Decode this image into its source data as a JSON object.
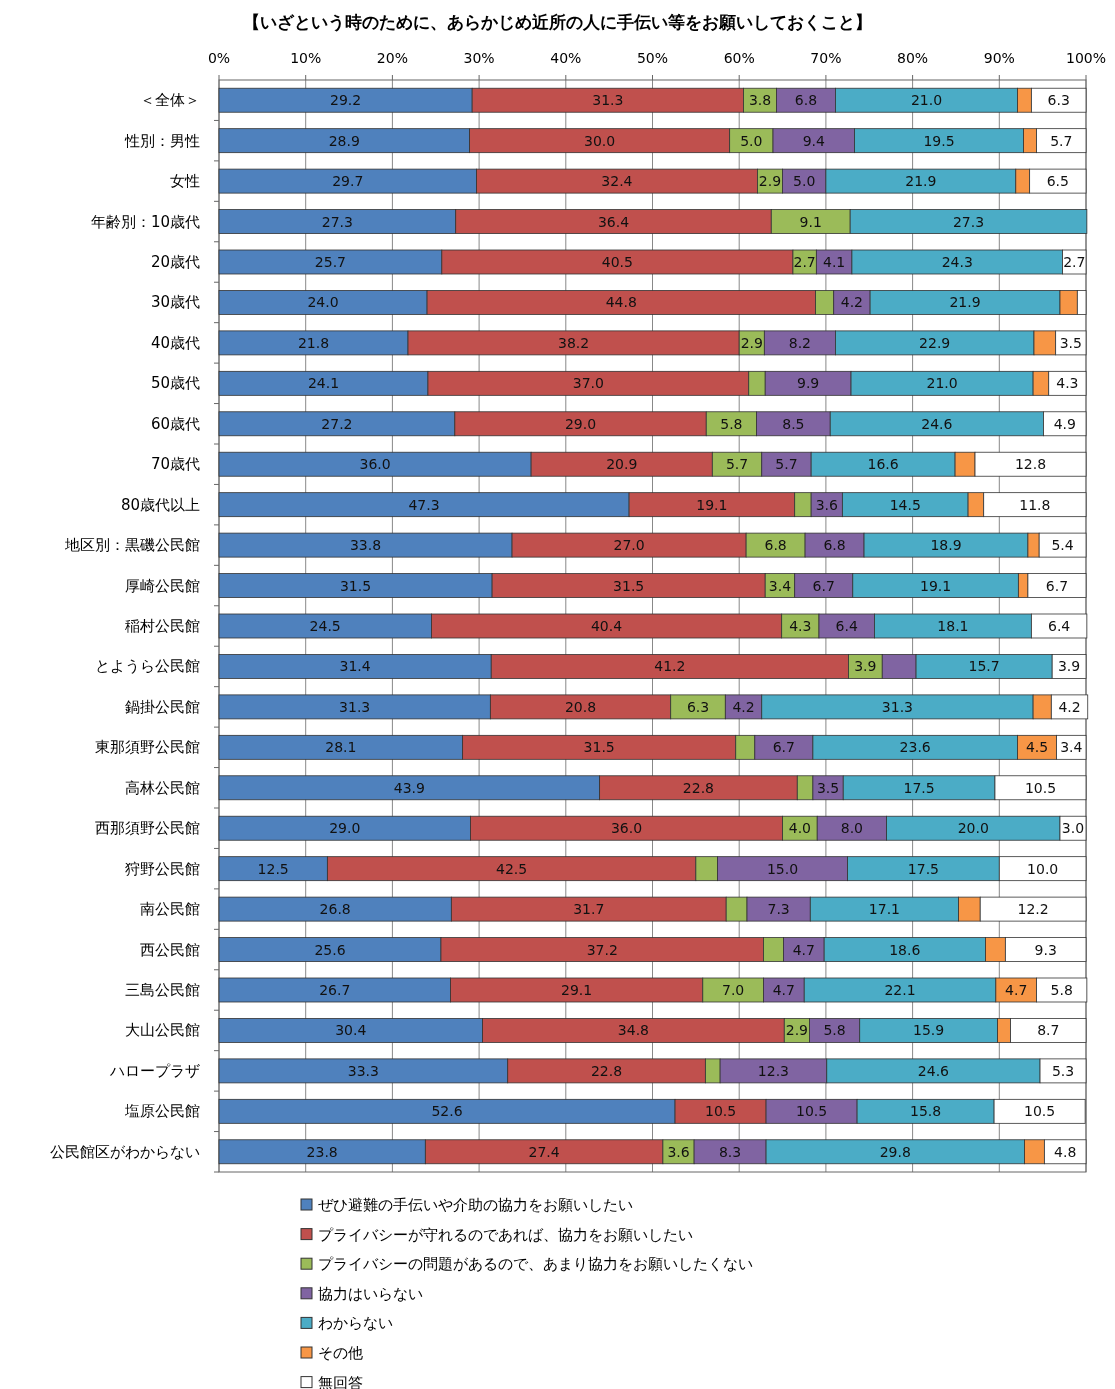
{
  "chart_data": {
    "type": "bar",
    "orientation": "horizontal",
    "stacked": true,
    "title": "【いざという時のために、あらかじめ近所の人に手伝い等をお願いしておくこと】",
    "categories": [
      "＜全体＞",
      "性別：男性",
      "女性",
      "年齢別：10歳代",
      "20歳代",
      "30歳代",
      "40歳代",
      "50歳代",
      "60歳代",
      "70歳代",
      "80歳代以上",
      "地区別：黒磯公民館",
      "厚崎公民館",
      "稲村公民館",
      "とようら公民館",
      "鍋掛公民館",
      "東那須野公民館",
      "高林公民館",
      "西那須野公民館",
      "狩野公民館",
      "南公民館",
      "西公民館",
      "三島公民館",
      "大山公民館",
      "ハロープラザ",
      "塩原公民館",
      "公民館区がわからない"
    ],
    "series": [
      {
        "name": "ぜひ避難の手伝いや介助の協力をお願いしたい",
        "color": "#4f81bd",
        "values": [
          29.2,
          28.9,
          29.7,
          27.3,
          25.7,
          24.0,
          21.8,
          24.1,
          27.2,
          36.0,
          47.3,
          33.8,
          31.5,
          24.5,
          31.4,
          31.3,
          28.1,
          43.9,
          29.0,
          12.5,
          26.8,
          25.6,
          26.7,
          30.4,
          33.3,
          52.6,
          23.8
        ],
        "value_labels": [
          "29.2",
          "28.9",
          "29.7",
          "27.3",
          "25.7",
          "24.0",
          "21.8",
          "24.1",
          "27.2",
          "36.0",
          "47.3",
          "33.8",
          "31.5",
          "24.5",
          "31.4",
          "31.3",
          "28.1",
          "43.9",
          "29.0",
          "12.5",
          "26.8",
          "25.6",
          "26.7",
          "30.4",
          "33.3",
          "52.6",
          "23.8"
        ]
      },
      {
        "name": "プライバシーが守れるのであれば、協力をお願いしたい",
        "color": "#c0504d",
        "values": [
          31.3,
          30.0,
          32.4,
          36.4,
          40.5,
          44.8,
          38.2,
          37.0,
          29.0,
          20.9,
          19.1,
          27.0,
          31.5,
          40.4,
          41.2,
          20.8,
          31.5,
          22.8,
          36.0,
          42.5,
          31.7,
          37.2,
          29.1,
          34.8,
          22.8,
          10.5,
          27.4
        ],
        "value_labels": [
          "31.3",
          "30.0",
          "32.4",
          "36.4",
          "40.5",
          "44.8",
          "38.2",
          "37.0",
          "29.0",
          "20.9",
          "19.1",
          "27.0",
          "31.5",
          "40.4",
          "41.2",
          "20.8",
          "31.5",
          "22.8",
          "36.0",
          "42.5",
          "31.7",
          "37.2",
          "29.1",
          "34.8",
          "22.8",
          "10.5",
          "27.4"
        ]
      },
      {
        "name": "プライバシーの問題があるので、あまり協力をお願いしたくない",
        "color": "#9bbb59",
        "values": [
          3.8,
          5.0,
          2.9,
          9.1,
          2.7,
          2.1,
          2.9,
          1.9,
          5.8,
          5.7,
          1.9,
          6.8,
          3.4,
          4.3,
          3.9,
          6.3,
          2.2,
          1.8,
          4.0,
          2.5,
          2.4,
          2.3,
          7.0,
          2.9,
          1.7,
          null,
          3.6
        ],
        "value_labels": [
          "3.8",
          "5.0",
          "2.9",
          "9.1",
          "2.7",
          null,
          "2.9",
          null,
          "5.8",
          "5.7",
          null,
          "6.8",
          "3.4",
          "4.3",
          "3.9",
          "6.3",
          null,
          null,
          "4.0",
          null,
          null,
          null,
          "7.0",
          "2.9",
          null,
          null,
          "3.6"
        ]
      },
      {
        "name": "協力はいらない",
        "color": "#8064a2",
        "values": [
          6.8,
          9.4,
          5.0,
          null,
          4.1,
          4.2,
          8.2,
          9.9,
          8.5,
          5.7,
          3.6,
          6.8,
          6.7,
          6.4,
          3.9,
          4.2,
          6.7,
          3.5,
          8.0,
          15.0,
          7.3,
          4.7,
          4.7,
          5.8,
          12.3,
          10.5,
          8.3
        ],
        "value_labels": [
          "6.8",
          "9.4",
          "5.0",
          null,
          "4.1",
          "4.2",
          "8.2",
          "9.9",
          "8.5",
          "5.7",
          "3.6",
          "6.8",
          "6.7",
          "6.4",
          null,
          "4.2",
          "6.7",
          "3.5",
          "8.0",
          "15.0",
          "7.3",
          "4.7",
          "4.7",
          "5.8",
          "12.3",
          "10.5",
          "8.3"
        ]
      },
      {
        "name": "わからない",
        "color": "#4bacc6",
        "values": [
          21.0,
          19.5,
          21.9,
          27.3,
          24.3,
          21.9,
          22.9,
          21.0,
          24.6,
          16.6,
          14.5,
          18.9,
          19.1,
          18.1,
          15.7,
          31.3,
          23.6,
          17.5,
          20.0,
          17.5,
          17.1,
          18.6,
          22.1,
          15.9,
          24.6,
          15.8,
          29.8
        ],
        "value_labels": [
          "21.0",
          "19.5",
          "21.9",
          "27.3",
          "24.3",
          "21.9",
          "22.9",
          "21.0",
          "24.6",
          "16.6",
          "14.5",
          "18.9",
          "19.1",
          "18.1",
          "15.7",
          "31.3",
          "23.6",
          "17.5",
          "20.0",
          "17.5",
          "17.1",
          "18.6",
          "22.1",
          "15.9",
          "24.6",
          "15.8",
          "29.8"
        ]
      },
      {
        "name": "その他",
        "color": "#f79646",
        "values": [
          1.6,
          1.5,
          1.6,
          null,
          null,
          2.0,
          2.5,
          1.8,
          null,
          2.3,
          1.8,
          1.3,
          1.1,
          null,
          null,
          2.1,
          4.5,
          null,
          null,
          null,
          2.5,
          2.3,
          4.7,
          1.5,
          null,
          null,
          2.3
        ],
        "value_labels": [
          null,
          null,
          null,
          null,
          null,
          null,
          null,
          null,
          null,
          null,
          null,
          null,
          null,
          null,
          null,
          null,
          "4.5",
          null,
          null,
          null,
          null,
          null,
          "4.7",
          null,
          null,
          null,
          null
        ]
      },
      {
        "name": "無回答",
        "color": "#ffffff",
        "values": [
          6.3,
          5.7,
          6.5,
          null,
          2.7,
          1.0,
          3.5,
          4.3,
          4.9,
          12.8,
          11.8,
          5.4,
          6.7,
          6.4,
          3.9,
          4.2,
          3.4,
          10.5,
          3.0,
          10.0,
          12.2,
          9.3,
          5.8,
          8.7,
          5.3,
          10.5,
          4.8
        ],
        "value_labels": [
          "6.3",
          "5.7",
          "6.5",
          null,
          "2.7",
          null,
          "3.5",
          "4.3",
          "4.9",
          "12.8",
          "11.8",
          "5.4",
          "6.7",
          "6.4",
          "3.9",
          "4.2",
          "3.4",
          "10.5",
          "3.0",
          "10.0",
          "12.2",
          "9.3",
          "5.8",
          "8.7",
          "5.3",
          "10.5",
          "4.8"
        ]
      }
    ],
    "xlim": [
      0,
      100
    ],
    "xticks": [
      {
        "value": 0,
        "label": "0%"
      },
      {
        "value": 10,
        "label": "10%"
      },
      {
        "value": 20,
        "label": "20%"
      },
      {
        "value": 30,
        "label": "30%"
      },
      {
        "value": 40,
        "label": "40%"
      },
      {
        "value": 50,
        "label": "50%"
      },
      {
        "value": 60,
        "label": "60%"
      },
      {
        "value": 70,
        "label": "70%"
      },
      {
        "value": 80,
        "label": "80%"
      },
      {
        "value": 90,
        "label": "90%"
      },
      {
        "value": 100,
        "label": "100%"
      }
    ],
    "grid": "x",
    "legend": "bottom"
  }
}
